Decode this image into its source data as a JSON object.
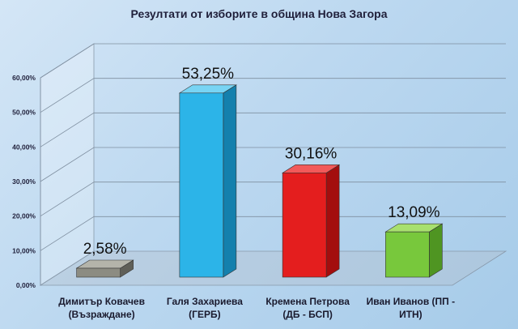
{
  "chart_data": {
    "type": "bar",
    "title": "Резултати от изборите в община Нова Загора",
    "categories": [
      [
        "Димитър Ковачев",
        "(Възраждане)"
      ],
      [
        "Галя Захариева",
        "(ГЕРБ)"
      ],
      [
        "Кремена Петрова",
        "(ДБ - БСП)"
      ],
      [
        "Иван Иванов  (ПП -",
        "ИТН)"
      ]
    ],
    "values": [
      2.58,
      53.25,
      30.16,
      13.09
    ],
    "data_labels": [
      "2,58%",
      "53,25%",
      "30,16%",
      "13,09%"
    ],
    "ylim": [
      0,
      60
    ],
    "yticks": [
      "0,00%",
      "10,00%",
      "20,00%",
      "30,00%",
      "40,00%",
      "50,00%",
      "60,00%"
    ],
    "bar_colors": [
      {
        "front": "#8c8c82",
        "side": "#5f5f58",
        "top": "#b4b4aa"
      },
      {
        "front": "#2cb4e8",
        "side": "#1480ad",
        "top": "#78d4f4"
      },
      {
        "front": "#e41e1e",
        "side": "#a30e0e",
        "top": "#f25a5a"
      },
      {
        "front": "#78c83c",
        "side": "#4f9522",
        "top": "#a8e06e"
      }
    ],
    "grid": true
  }
}
